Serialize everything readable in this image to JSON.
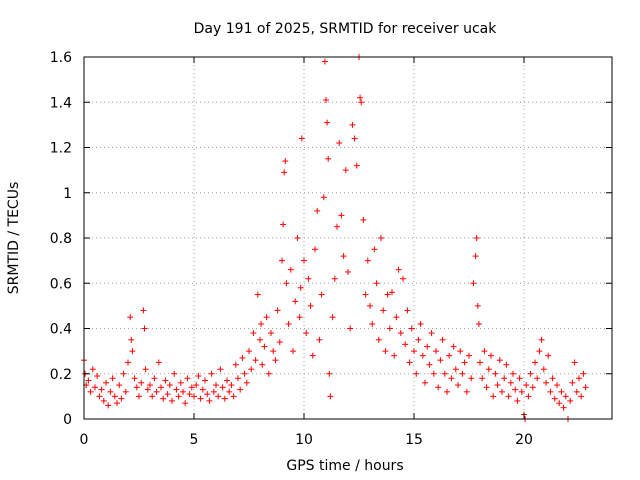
{
  "chart_data": {
    "type": "scatter",
    "title": "Day 191 of 2025, SRMTID for receiver ucak",
    "xlabel": "GPS time / hours",
    "ylabel": "SRMTID / TECUs",
    "xlim": [
      0,
      24
    ],
    "ylim": [
      0,
      1.6
    ],
    "xticks": [
      "0",
      "5",
      "10",
      "15",
      "20"
    ],
    "xtick_values": [
      0,
      5,
      10,
      15,
      20
    ],
    "yticks": [
      "0",
      "0.2",
      "0.4",
      "0.6",
      "0.8",
      "1",
      "1.2",
      "1.4",
      "1.6"
    ],
    "ytick_values": [
      0,
      0.2,
      0.4,
      0.6,
      0.8,
      1.0,
      1.2,
      1.4,
      1.6
    ],
    "grid": true,
    "marker": "plus",
    "color": "#ff0000",
    "series": [
      {
        "name": "SRMTID",
        "points": [
          [
            0.0,
            0.26
          ],
          [
            0.05,
            0.2
          ],
          [
            0.1,
            0.15
          ],
          [
            0.2,
            0.17
          ],
          [
            0.3,
            0.12
          ],
          [
            0.4,
            0.22
          ],
          [
            0.5,
            0.14
          ],
          [
            0.6,
            0.19
          ],
          [
            0.7,
            0.1
          ],
          [
            0.8,
            0.13
          ],
          [
            0.9,
            0.08
          ],
          [
            1.0,
            0.16
          ],
          [
            1.1,
            0.06
          ],
          [
            1.2,
            0.12
          ],
          [
            1.3,
            0.18
          ],
          [
            1.4,
            0.1
          ],
          [
            1.5,
            0.07
          ],
          [
            1.6,
            0.15
          ],
          [
            1.7,
            0.09
          ],
          [
            1.8,
            0.2
          ],
          [
            1.9,
            0.12
          ],
          [
            2.0,
            0.25
          ],
          [
            2.1,
            0.45
          ],
          [
            2.15,
            0.35
          ],
          [
            2.2,
            0.3
          ],
          [
            2.3,
            0.18
          ],
          [
            2.4,
            0.14
          ],
          [
            2.5,
            0.1
          ],
          [
            2.6,
            0.16
          ],
          [
            2.7,
            0.48
          ],
          [
            2.75,
            0.4
          ],
          [
            2.8,
            0.22
          ],
          [
            2.9,
            0.13
          ],
          [
            3.0,
            0.15
          ],
          [
            3.1,
            0.1
          ],
          [
            3.2,
            0.18
          ],
          [
            3.3,
            0.12
          ],
          [
            3.4,
            0.25
          ],
          [
            3.5,
            0.14
          ],
          [
            3.6,
            0.09
          ],
          [
            3.7,
            0.17
          ],
          [
            3.8,
            0.11
          ],
          [
            3.9,
            0.15
          ],
          [
            4.0,
            0.08
          ],
          [
            4.1,
            0.2
          ],
          [
            4.2,
            0.13
          ],
          [
            4.3,
            0.1
          ],
          [
            4.4,
            0.16
          ],
          [
            4.5,
            0.12
          ],
          [
            4.6,
            0.07
          ],
          [
            4.7,
            0.18
          ],
          [
            4.8,
            0.11
          ],
          [
            4.9,
            0.14
          ],
          [
            5.0,
            0.1
          ],
          [
            5.1,
            0.15
          ],
          [
            5.2,
            0.19
          ],
          [
            5.3,
            0.09
          ],
          [
            5.4,
            0.13
          ],
          [
            5.5,
            0.17
          ],
          [
            5.6,
            0.11
          ],
          [
            5.7,
            0.08
          ],
          [
            5.8,
            0.2
          ],
          [
            5.9,
            0.12
          ],
          [
            6.0,
            0.15
          ],
          [
            6.1,
            0.1
          ],
          [
            6.2,
            0.22
          ],
          [
            6.3,
            0.14
          ],
          [
            6.4,
            0.09
          ],
          [
            6.5,
            0.17
          ],
          [
            6.6,
            0.12
          ],
          [
            6.7,
            0.15
          ],
          [
            6.8,
            0.1
          ],
          [
            6.9,
            0.24
          ],
          [
            7.0,
            0.18
          ],
          [
            7.1,
            0.13
          ],
          [
            7.2,
            0.27
          ],
          [
            7.3,
            0.2
          ],
          [
            7.4,
            0.16
          ],
          [
            7.5,
            0.3
          ],
          [
            7.6,
            0.22
          ],
          [
            7.7,
            0.38
          ],
          [
            7.8,
            0.26
          ],
          [
            7.9,
            0.55
          ],
          [
            8.0,
            0.35
          ],
          [
            8.05,
            0.42
          ],
          [
            8.1,
            0.24
          ],
          [
            8.2,
            0.32
          ],
          [
            8.3,
            0.45
          ],
          [
            8.4,
            0.2
          ],
          [
            8.5,
            0.38
          ],
          [
            8.6,
            0.3
          ],
          [
            8.7,
            0.26
          ],
          [
            8.8,
            0.48
          ],
          [
            8.9,
            0.34
          ],
          [
            9.0,
            0.7
          ],
          [
            9.05,
            0.86
          ],
          [
            9.1,
            1.09
          ],
          [
            9.15,
            1.14
          ],
          [
            9.2,
            0.6
          ],
          [
            9.3,
            0.42
          ],
          [
            9.4,
            0.66
          ],
          [
            9.5,
            0.3
          ],
          [
            9.6,
            0.52
          ],
          [
            9.7,
            0.8
          ],
          [
            9.8,
            0.45
          ],
          [
            9.85,
            0.58
          ],
          [
            9.9,
            1.24
          ],
          [
            10.0,
            0.7
          ],
          [
            10.1,
            0.38
          ],
          [
            10.2,
            0.62
          ],
          [
            10.3,
            0.5
          ],
          [
            10.4,
            0.28
          ],
          [
            10.5,
            0.75
          ],
          [
            10.6,
            0.92
          ],
          [
            10.7,
            0.35
          ],
          [
            10.8,
            0.55
          ],
          [
            10.9,
            0.98
          ],
          [
            10.95,
            1.58
          ],
          [
            11.0,
            1.41
          ],
          [
            11.05,
            1.31
          ],
          [
            11.1,
            1.15
          ],
          [
            11.15,
            0.2
          ],
          [
            11.2,
            0.1
          ],
          [
            11.3,
            0.45
          ],
          [
            11.4,
            0.62
          ],
          [
            11.5,
            0.85
          ],
          [
            11.6,
            1.22
          ],
          [
            11.7,
            0.9
          ],
          [
            11.8,
            0.72
          ],
          [
            11.9,
            1.1
          ],
          [
            12.0,
            0.65
          ],
          [
            12.1,
            0.4
          ],
          [
            12.2,
            1.3
          ],
          [
            12.3,
            1.24
          ],
          [
            12.4,
            1.12
          ],
          [
            12.5,
            1.6
          ],
          [
            12.55,
            1.42
          ],
          [
            12.6,
            1.4
          ],
          [
            12.7,
            0.88
          ],
          [
            12.8,
            0.55
          ],
          [
            12.9,
            0.7
          ],
          [
            13.0,
            0.5
          ],
          [
            13.1,
            0.42
          ],
          [
            13.2,
            0.75
          ],
          [
            13.3,
            0.6
          ],
          [
            13.4,
            0.35
          ],
          [
            13.5,
            0.8
          ],
          [
            13.6,
            0.48
          ],
          [
            13.7,
            0.3
          ],
          [
            13.8,
            0.55
          ],
          [
            13.9,
            0.4
          ],
          [
            14.0,
            0.56
          ],
          [
            14.1,
            0.28
          ],
          [
            14.2,
            0.45
          ],
          [
            14.3,
            0.66
          ],
          [
            14.4,
            0.38
          ],
          [
            14.5,
            0.62
          ],
          [
            14.6,
            0.33
          ],
          [
            14.7,
            0.48
          ],
          [
            14.8,
            0.25
          ],
          [
            14.9,
            0.4
          ],
          [
            15.0,
            0.3
          ],
          [
            15.1,
            0.2
          ],
          [
            15.2,
            0.35
          ],
          [
            15.3,
            0.42
          ],
          [
            15.4,
            0.28
          ],
          [
            15.5,
            0.16
          ],
          [
            15.6,
            0.32
          ],
          [
            15.7,
            0.24
          ],
          [
            15.8,
            0.38
          ],
          [
            15.9,
            0.2
          ],
          [
            16.0,
            0.3
          ],
          [
            16.1,
            0.14
          ],
          [
            16.2,
            0.26
          ],
          [
            16.3,
            0.35
          ],
          [
            16.4,
            0.2
          ],
          [
            16.5,
            0.12
          ],
          [
            16.6,
            0.28
          ],
          [
            16.7,
            0.18
          ],
          [
            16.8,
            0.32
          ],
          [
            16.9,
            0.22
          ],
          [
            17.0,
            0.15
          ],
          [
            17.1,
            0.3
          ],
          [
            17.2,
            0.2
          ],
          [
            17.3,
            0.25
          ],
          [
            17.4,
            0.12
          ],
          [
            17.5,
            0.28
          ],
          [
            17.6,
            0.18
          ],
          [
            17.7,
            0.6
          ],
          [
            17.8,
            0.72
          ],
          [
            17.85,
            0.8
          ],
          [
            17.9,
            0.5
          ],
          [
            17.95,
            0.42
          ],
          [
            18.0,
            0.25
          ],
          [
            18.1,
            0.18
          ],
          [
            18.2,
            0.3
          ],
          [
            18.3,
            0.14
          ],
          [
            18.4,
            0.22
          ],
          [
            18.5,
            0.28
          ],
          [
            18.6,
            0.1
          ],
          [
            18.7,
            0.2
          ],
          [
            18.8,
            0.15
          ],
          [
            18.9,
            0.26
          ],
          [
            19.0,
            0.12
          ],
          [
            19.1,
            0.18
          ],
          [
            19.2,
            0.24
          ],
          [
            19.3,
            0.1
          ],
          [
            19.4,
            0.16
          ],
          [
            19.5,
            0.2
          ],
          [
            19.6,
            0.13
          ],
          [
            19.7,
            0.08
          ],
          [
            19.8,
            0.18
          ],
          [
            19.9,
            0.12
          ],
          [
            20.0,
            0.02
          ],
          [
            20.05,
            0.0
          ],
          [
            20.1,
            0.15
          ],
          [
            20.2,
            0.1
          ],
          [
            20.3,
            0.2
          ],
          [
            20.4,
            0.14
          ],
          [
            20.5,
            0.25
          ],
          [
            20.6,
            0.18
          ],
          [
            20.7,
            0.3
          ],
          [
            20.8,
            0.35
          ],
          [
            20.9,
            0.22
          ],
          [
            21.0,
            0.16
          ],
          [
            21.1,
            0.28
          ],
          [
            21.2,
            0.12
          ],
          [
            21.3,
            0.18
          ],
          [
            21.4,
            0.09
          ],
          [
            21.5,
            0.15
          ],
          [
            21.6,
            0.07
          ],
          [
            21.7,
            0.12
          ],
          [
            21.8,
            0.05
          ],
          [
            21.9,
            0.1
          ],
          [
            22.0,
            0.0
          ],
          [
            22.1,
            0.08
          ],
          [
            22.2,
            0.16
          ],
          [
            22.3,
            0.25
          ],
          [
            22.4,
            0.12
          ],
          [
            22.5,
            0.18
          ],
          [
            22.6,
            0.1
          ],
          [
            22.7,
            0.2
          ],
          [
            22.8,
            0.14
          ]
        ]
      }
    ]
  }
}
